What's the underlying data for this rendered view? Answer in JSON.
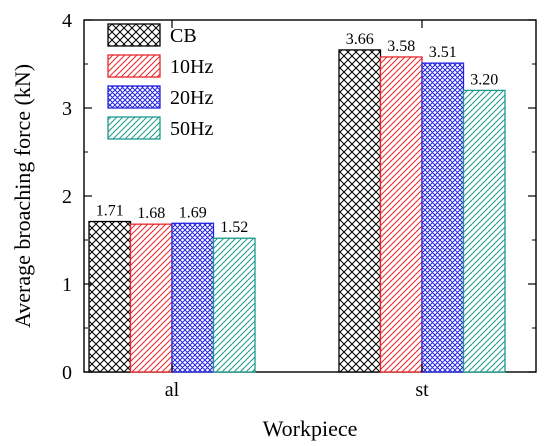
{
  "chart_data": {
    "type": "bar",
    "title": "",
    "xlabel": "Workpiece",
    "ylabel": "Average broaching force (kN)",
    "categories": [
      "al",
      "st"
    ],
    "ylim": [
      0,
      4
    ],
    "yticks": [
      "0",
      "1",
      "2",
      "3",
      "4"
    ],
    "legend_position": "top-left",
    "grid": false,
    "series": [
      {
        "name": "CB",
        "values": [
          1.71,
          3.66
        ],
        "labels": [
          "1.71",
          "3.66"
        ],
        "color": "#000000",
        "pattern": "crosshatch"
      },
      {
        "name": "10Hz",
        "values": [
          1.68,
          3.58
        ],
        "labels": [
          "1.68",
          "3.58"
        ],
        "color": "#e8262b",
        "pattern": "diagonal"
      },
      {
        "name": "20Hz",
        "values": [
          1.69,
          3.51
        ],
        "labels": [
          "1.69",
          "3.51"
        ],
        "color": "#2424e0",
        "pattern": "crosshatch"
      },
      {
        "name": "50Hz",
        "values": [
          1.52,
          3.2
        ],
        "labels": [
          "1.52",
          "3.20"
        ],
        "color": "#1a9a8a",
        "pattern": "diagonal"
      }
    ]
  }
}
